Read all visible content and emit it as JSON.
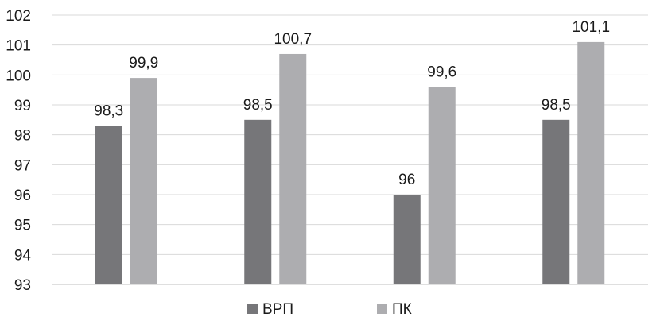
{
  "chart_data": {
    "type": "bar",
    "categories": [
      "",
      "",
      "",
      ""
    ],
    "series": [
      {
        "name": "ВРП",
        "color": "#767679",
        "values": [
          98.3,
          98.5,
          96,
          98.5
        ],
        "labels": [
          "98,3",
          "98,5",
          "96",
          "98,5"
        ]
      },
      {
        "name": "ПК",
        "color": "#adadb0",
        "values": [
          99.9,
          100.7,
          99.6,
          101.1
        ],
        "labels": [
          "99,9",
          "100,7",
          "99,6",
          "101,1"
        ]
      }
    ],
    "y_ticks": [
      93,
      94,
      95,
      96,
      97,
      98,
      99,
      100,
      101,
      102
    ],
    "ylim": [
      93,
      102
    ],
    "grid": true,
    "legend_position": "bottom-center"
  }
}
